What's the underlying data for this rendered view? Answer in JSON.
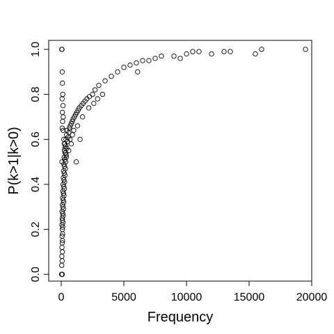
{
  "chart_data": {
    "type": "scatter",
    "title": "",
    "xlabel": "Frequency",
    "ylabel": "P(k>1|k>0)",
    "xlim": [
      -1000,
      20000
    ],
    "ylim": [
      -0.03,
      1.04
    ],
    "xticks": [
      0,
      5000,
      10000,
      15000,
      20000
    ],
    "xtick_labels": [
      "0",
      "5000",
      "10000",
      "15000",
      "20000"
    ],
    "yticks": [
      0.0,
      0.2,
      0.4,
      0.6,
      0.8,
      1.0
    ],
    "ytick_labels": [
      "0.0",
      "0.2",
      "0.4",
      "0.6",
      "0.8",
      "1.0"
    ],
    "grid": false,
    "legend": "none",
    "marker": "open-circle",
    "color": "#000000",
    "points": [
      [
        30,
        0.0
      ],
      [
        60,
        0.0
      ],
      [
        80,
        0.0
      ],
      [
        40,
        0.04
      ],
      [
        70,
        0.06
      ],
      [
        50,
        0.08
      ],
      [
        90,
        0.1
      ],
      [
        60,
        0.12
      ],
      [
        80,
        0.14
      ],
      [
        100,
        0.15
      ],
      [
        70,
        0.17
      ],
      [
        110,
        0.18
      ],
      [
        90,
        0.2
      ],
      [
        120,
        0.21
      ],
      [
        60,
        0.22
      ],
      [
        140,
        0.23
      ],
      [
        100,
        0.24
      ],
      [
        80,
        0.25
      ],
      [
        160,
        0.26
      ],
      [
        120,
        0.27
      ],
      [
        70,
        0.28
      ],
      [
        180,
        0.29
      ],
      [
        140,
        0.3
      ],
      [
        90,
        0.31
      ],
      [
        200,
        0.32
      ],
      [
        160,
        0.33
      ],
      [
        110,
        0.34
      ],
      [
        220,
        0.35
      ],
      [
        180,
        0.36
      ],
      [
        130,
        0.37
      ],
      [
        250,
        0.38
      ],
      [
        200,
        0.39
      ],
      [
        150,
        0.4
      ],
      [
        270,
        0.41
      ],
      [
        220,
        0.42
      ],
      [
        170,
        0.43
      ],
      [
        300,
        0.44
      ],
      [
        240,
        0.45
      ],
      [
        190,
        0.46
      ],
      [
        330,
        0.47
      ],
      [
        260,
        0.48
      ],
      [
        210,
        0.49
      ],
      [
        60,
        0.5
      ],
      [
        360,
        0.5
      ],
      [
        290,
        0.51
      ],
      [
        230,
        0.52
      ],
      [
        400,
        0.53
      ],
      [
        320,
        0.54
      ],
      [
        250,
        0.55
      ],
      [
        450,
        0.56
      ],
      [
        350,
        0.57
      ],
      [
        280,
        0.58
      ],
      [
        500,
        0.59
      ],
      [
        380,
        0.6
      ],
      [
        550,
        0.61
      ],
      [
        420,
        0.62
      ],
      [
        600,
        0.63
      ],
      [
        460,
        0.64
      ],
      [
        80,
        0.65
      ],
      [
        650,
        0.65
      ],
      [
        720,
        0.66
      ],
      [
        800,
        0.67
      ],
      [
        880,
        0.68
      ],
      [
        950,
        0.69
      ],
      [
        1050,
        0.7
      ],
      [
        1150,
        0.71
      ],
      [
        1250,
        0.72
      ],
      [
        1350,
        0.73
      ],
      [
        1450,
        0.74
      ],
      [
        1600,
        0.75
      ],
      [
        1750,
        0.76
      ],
      [
        1900,
        0.77
      ],
      [
        2050,
        0.78
      ],
      [
        2250,
        0.79
      ],
      [
        2500,
        0.8
      ],
      [
        2700,
        0.82
      ],
      [
        3000,
        0.84
      ],
      [
        3500,
        0.86
      ],
      [
        4000,
        0.88
      ],
      [
        4500,
        0.9
      ],
      [
        5000,
        0.92
      ],
      [
        5500,
        0.93
      ],
      [
        6000,
        0.94
      ],
      [
        6500,
        0.95
      ],
      [
        7500,
        0.96
      ],
      [
        8000,
        0.97
      ],
      [
        9000,
        0.97
      ],
      [
        10000,
        0.98
      ],
      [
        10500,
        0.99
      ],
      [
        11000,
        0.99
      ],
      [
        13000,
        0.99
      ],
      [
        13500,
        0.99
      ],
      [
        15500,
        0.98
      ],
      [
        16000,
        1.0
      ],
      [
        19500,
        1.0
      ],
      [
        40,
        1.0
      ],
      [
        60,
        1.0
      ],
      [
        80,
        0.9
      ],
      [
        100,
        0.85
      ],
      [
        120,
        0.8
      ],
      [
        140,
        0.75
      ],
      [
        160,
        0.7
      ],
      [
        70,
        0.78
      ],
      [
        90,
        0.72
      ],
      [
        110,
        0.68
      ],
      [
        150,
        0.64
      ],
      [
        200,
        0.6
      ],
      [
        250,
        0.58
      ],
      [
        300,
        0.56
      ],
      [
        350,
        0.54
      ],
      [
        400,
        0.52
      ],
      [
        1200,
        0.5
      ],
      [
        1500,
        0.6
      ],
      [
        800,
        0.58
      ],
      [
        600,
        0.55
      ],
      [
        700,
        0.6
      ],
      [
        900,
        0.62
      ],
      [
        1000,
        0.64
      ],
      [
        1300,
        0.66
      ],
      [
        1700,
        0.7
      ],
      [
        2200,
        0.74
      ],
      [
        2600,
        0.76
      ],
      [
        2900,
        0.78
      ],
      [
        3300,
        0.8
      ],
      [
        6100,
        0.9
      ],
      [
        7000,
        0.95
      ],
      [
        9500,
        0.96
      ],
      [
        12000,
        0.98
      ]
    ]
  }
}
